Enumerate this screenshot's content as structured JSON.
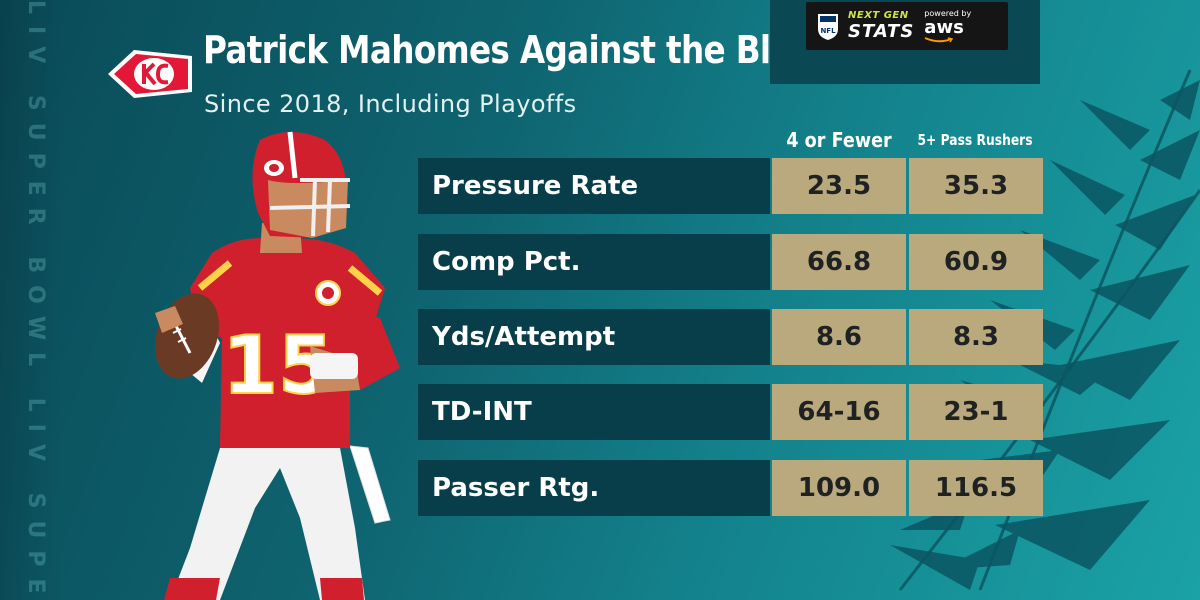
{
  "vertical_watermark": "LIV SUPER BOWL LIV SUPER BOWL LIV SUPER BOWL LIV",
  "title": "Patrick Mahomes Against the Blitz",
  "subtitle": "Since 2018, Including Playoffs",
  "badge": {
    "ngs_top": "NEXT GEN",
    "ngs_main": "STATS",
    "powered_by": "powered by",
    "aws": "aws"
  },
  "player_number": "15",
  "columns": [
    "4 or Fewer",
    "5+ Pass Rushers"
  ],
  "rows": [
    {
      "label": "Pressure Rate",
      "values": [
        "23.5",
        "35.3"
      ]
    },
    {
      "label": "Comp Pct.",
      "values": [
        "66.8",
        "60.9"
      ]
    },
    {
      "label": "Yds/Attempt",
      "values": [
        "8.6",
        "8.3"
      ]
    },
    {
      "label": "TD-INT",
      "values": [
        "64-16",
        "23-1"
      ]
    },
    {
      "label": "Passer Rtg.",
      "values": [
        "109.0",
        "116.5"
      ]
    }
  ],
  "colors": {
    "bg_dark": "#0a4a57",
    "bg_light": "#1aa2a6",
    "row_label_bg": "#073e4a",
    "value_cell_bg": "#baa97d",
    "chiefs_red": "#e31837"
  }
}
